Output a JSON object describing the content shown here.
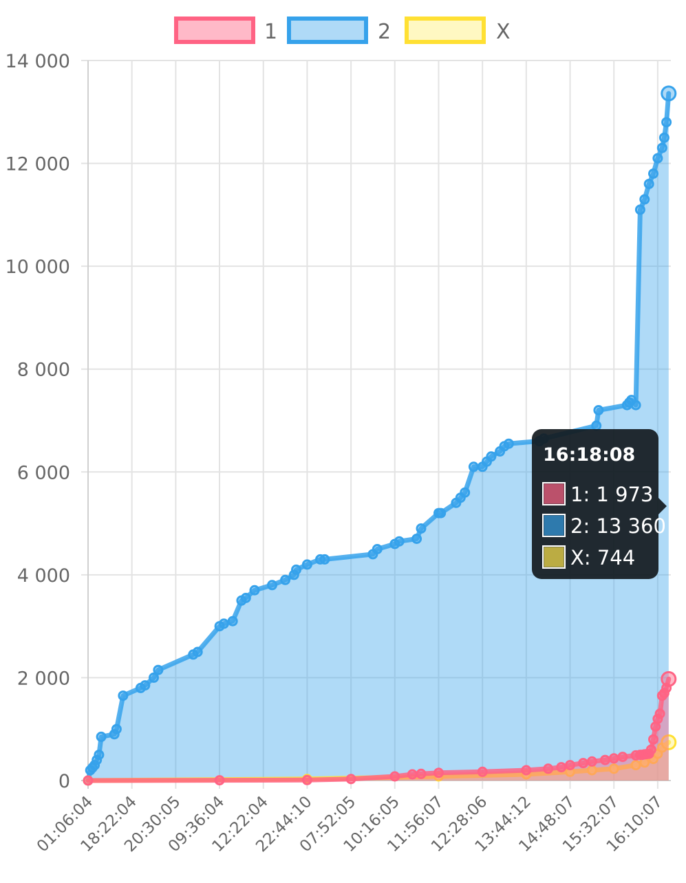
{
  "chart_data": {
    "type": "line",
    "title": "",
    "xlabel": "",
    "ylabel": "",
    "ylim": [
      0,
      14000
    ],
    "y_ticks": [
      0,
      2000,
      4000,
      6000,
      8000,
      10000,
      12000,
      14000
    ],
    "y_tick_labels": [
      "0",
      "2 000",
      "4 000",
      "6 000",
      "8 000",
      "10 000",
      "12 000",
      "14 000"
    ],
    "x_tick_labels": [
      "01:06:04",
      "18:22:04",
      "20:30:05",
      "09:36:04",
      "12:22:04",
      "22:44:10",
      "07:52:05",
      "10:16:05",
      "11:56:07",
      "12:28:06",
      "13:44:12",
      "14:48:07",
      "15:32:07",
      "16:10:07"
    ],
    "x_range": [
      0,
      13.3
    ],
    "grid": true,
    "legend_position": "top",
    "series": [
      {
        "name": "1",
        "color": "#ff6384",
        "fill": "rgba(255,99,132,0.45)",
        "x": [
          0,
          3,
          5,
          6,
          7,
          7.4,
          7.6,
          8,
          9,
          10,
          10.5,
          10.8,
          11,
          11.3,
          11.5,
          11.8,
          12,
          12.2,
          12.5,
          12.6,
          12.65,
          12.7,
          12.75,
          12.8,
          12.85,
          12.9,
          12.95,
          13.0,
          13.05,
          13.1,
          13.15,
          13.2,
          13.25
        ],
        "y": [
          0,
          5,
          10,
          30,
          80,
          120,
          130,
          150,
          170,
          200,
          230,
          260,
          300,
          340,
          370,
          400,
          430,
          460,
          490,
          500,
          500,
          510,
          515,
          520,
          600,
          800,
          1050,
          1200,
          1300,
          1650,
          1700,
          1800,
          1973
        ]
      },
      {
        "name": "2",
        "color": "#36a2eb",
        "fill": "rgba(54,162,235,0.40)",
        "x": [
          0,
          0.05,
          0.1,
          0.15,
          0.2,
          0.25,
          0.3,
          0.6,
          0.65,
          0.8,
          1.2,
          1.3,
          1.5,
          1.6,
          2.4,
          2.5,
          3.0,
          3.1,
          3.3,
          3.5,
          3.6,
          3.8,
          4.2,
          4.5,
          4.7,
          4.75,
          5.0,
          5.3,
          5.4,
          6.5,
          6.6,
          7.0,
          7.1,
          7.5,
          7.6,
          8.0,
          8.05,
          8.4,
          8.5,
          8.6,
          8.8,
          9.0,
          9.1,
          9.2,
          9.4,
          9.5,
          9.6,
          10.3,
          10.4,
          11.6,
          11.65,
          12.3,
          12.35,
          12.4,
          12.5,
          12.6,
          12.7,
          12.8,
          12.9,
          13.0,
          13.1,
          13.15,
          13.2,
          13.25
        ],
        "y": [
          0,
          200,
          250,
          300,
          400,
          500,
          850,
          900,
          1000,
          1650,
          1800,
          1850,
          2000,
          2150,
          2450,
          2500,
          3000,
          3050,
          3100,
          3500,
          3550,
          3700,
          3800,
          3900,
          4000,
          4100,
          4200,
          4300,
          4300,
          4400,
          4500,
          4600,
          4650,
          4700,
          4900,
          5200,
          5200,
          5400,
          5500,
          5600,
          6100,
          6100,
          6200,
          6300,
          6400,
          6500,
          6550,
          6600,
          6650,
          6900,
          7200,
          7300,
          7350,
          7400,
          7300,
          11100,
          11300,
          11600,
          11800,
          12100,
          12300,
          12500,
          12800,
          13360
        ]
      },
      {
        "name": "X",
        "color": "#ffe033",
        "fill": "rgba(255,240,120,0.45)",
        "x": [
          0,
          5,
          8,
          10,
          11,
          11.5,
          12,
          12.5,
          12.7,
          12.9,
          13.0,
          13.1,
          13.25
        ],
        "y": [
          0,
          30,
          80,
          120,
          170,
          200,
          230,
          300,
          350,
          420,
          520,
          640,
          744
        ]
      }
    ],
    "tooltip": {
      "title": "16:18:08",
      "lines": [
        "1: 1 973",
        "2: 13 360",
        "X: 744"
      ]
    }
  }
}
